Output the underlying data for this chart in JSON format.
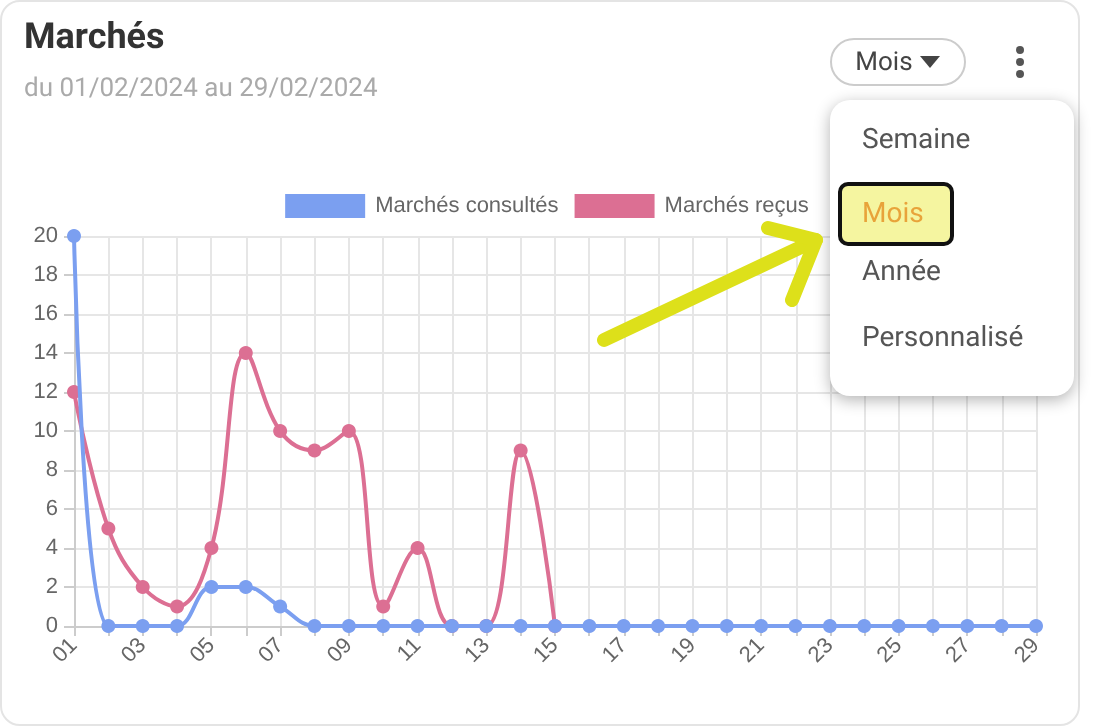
{
  "chart_data": {
    "type": "line",
    "title": "Marchés",
    "subtitle": "du 01/02/2024 au 29/02/2024",
    "categories": [
      "01",
      null,
      "03",
      null,
      "05",
      null,
      "07",
      null,
      "09",
      null,
      "11",
      null,
      "13",
      null,
      "15",
      null,
      "17",
      null,
      "19",
      null,
      "21",
      null,
      "23",
      null,
      "25",
      null,
      "27",
      null,
      "29"
    ],
    "series": [
      {
        "name": "Marchés consultés",
        "color": "#7b9ff0",
        "values": [
          20,
          0,
          0,
          0,
          2,
          2,
          1,
          0,
          0,
          0,
          0,
          0,
          0,
          0,
          0,
          0,
          0,
          0,
          0,
          0,
          0,
          0,
          0,
          0,
          0,
          0,
          0,
          0,
          0
        ]
      },
      {
        "name": "Marchés reçus",
        "color": "#dc6f93",
        "values": [
          12,
          5,
          2,
          1,
          4,
          14,
          10,
          9,
          10,
          1,
          4,
          0,
          0,
          9,
          0,
          null,
          null,
          null,
          null,
          null,
          null,
          null,
          null,
          null,
          null,
          null,
          null,
          null,
          null
        ]
      }
    ],
    "ylim": [
      0,
      20
    ],
    "yticks": [
      0,
      2,
      4,
      6,
      8,
      10,
      12,
      14,
      16,
      18,
      20
    ],
    "grid": true,
    "legend": "top",
    "marker": "circle",
    "annotations": [
      "Mois",
      "Semaine",
      "Mois",
      "Année",
      "Personnalisé"
    ]
  }
}
